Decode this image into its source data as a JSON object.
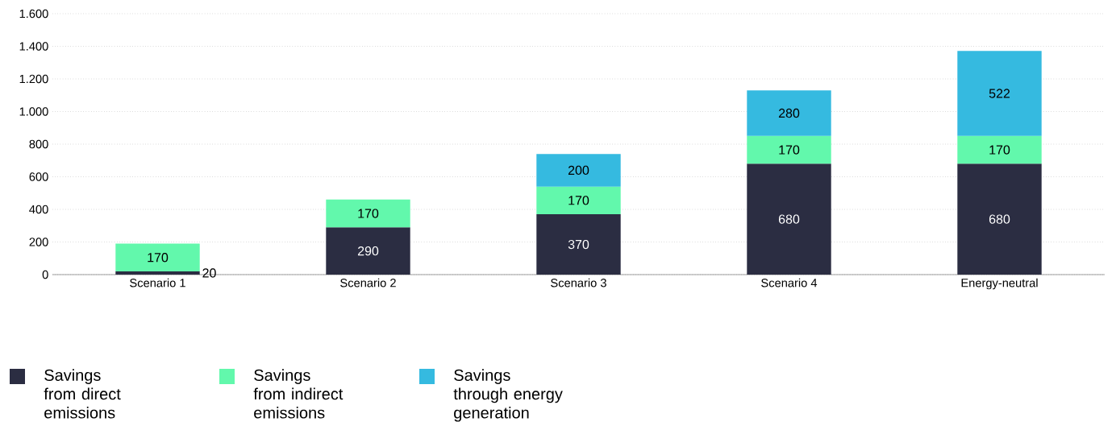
{
  "chart_data": {
    "type": "bar",
    "stacked": true,
    "categories": [
      "Scenario 1",
      "Scenario 2",
      "Scenario 3",
      "Scenario 4",
      "Energy-neutral"
    ],
    "series": [
      {
        "name": "Savings from direct emissions",
        "color": "#2b2d42",
        "values": [
          20,
          290,
          370,
          680,
          680
        ]
      },
      {
        "name": "Savings from indirect emissions",
        "color": "#62f8ac",
        "values": [
          170,
          170,
          170,
          170,
          170
        ]
      },
      {
        "name": "Savings through energy generation",
        "color": "#35bae0",
        "values": [
          null,
          null,
          200,
          280,
          522
        ]
      }
    ],
    "ylim": [
      0,
      1600
    ],
    "yticks": [
      0,
      200,
      400,
      600,
      800,
      {
        "value": 1000,
        "label": "1.000"
      },
      {
        "value": 1200,
        "label": "1.200"
      },
      {
        "value": 1400,
        "label": "1.400"
      },
      {
        "value": 1600,
        "label": "1.600"
      }
    ],
    "grid": "y",
    "legend": "bottom",
    "data_labels": true
  }
}
